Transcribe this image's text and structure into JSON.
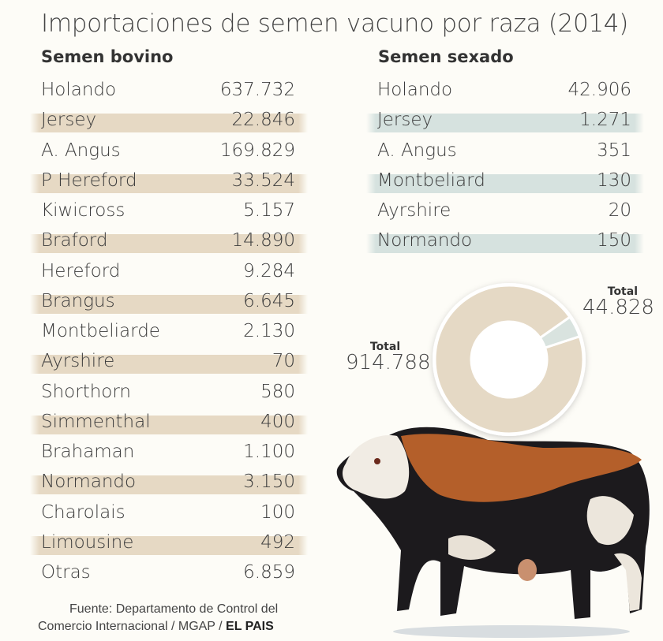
{
  "title": "Importaciones de semen vacuno por raza (2014)",
  "colors": {
    "bovino_stripe": "#e6d9c4",
    "sexado_stripe": "#d6e2df",
    "donut_bovino": "#e5d9c5",
    "donut_sexado": "#d9e3df",
    "background": "#fdfcf7"
  },
  "chart_data": [
    {
      "type": "table",
      "title": "Semen bovino",
      "rows": [
        {
          "label": "Holando",
          "value": "637.732"
        },
        {
          "label": "Jersey",
          "value": "22.846"
        },
        {
          "label": "A. Angus",
          "value": "169.829"
        },
        {
          "label": "P Hereford",
          "value": "33.524"
        },
        {
          "label": "Kiwicross",
          "value": "5.157"
        },
        {
          "label": "Braford",
          "value": "14.890"
        },
        {
          "label": "Hereford",
          "value": "9.284"
        },
        {
          "label": "Brangus",
          "value": "6.645"
        },
        {
          "label": "Montbeliarde",
          "value": "2.130"
        },
        {
          "label": "Ayrshire",
          "value": "70"
        },
        {
          "label": "Shorthorn",
          "value": "580"
        },
        {
          "label": "Simmenthal",
          "value": "400"
        },
        {
          "label": "Brahaman",
          "value": "1.100"
        },
        {
          "label": "Normando",
          "value": "3.150"
        },
        {
          "label": "Charolais",
          "value": "100"
        },
        {
          "label": "Limousine",
          "value": "492"
        },
        {
          "label": "Otras",
          "value": "6.859"
        }
      ]
    },
    {
      "type": "table",
      "title": "Semen sexado",
      "rows": [
        {
          "label": "Holando",
          "value": "42.906"
        },
        {
          "label": "Jersey",
          "value": "1.271"
        },
        {
          "label": "A. Angus",
          "value": "351"
        },
        {
          "label": "Montbeliard",
          "value": "130"
        },
        {
          "label": "Ayrshire",
          "value": "20"
        },
        {
          "label": "Normando",
          "value": "150"
        }
      ]
    },
    {
      "type": "pie",
      "slices": [
        {
          "label": "Total",
          "value": 914788,
          "display": "914.788",
          "color": "#e5d9c5"
        },
        {
          "label": "Total",
          "value": 44828,
          "display": "44.828",
          "color": "#d9e3df"
        }
      ]
    }
  ],
  "footer": {
    "source": "Fuente: Departamento de Control del",
    "source2": "Comercio Internacional / MGAP / ",
    "brand": "EL PAIS"
  }
}
